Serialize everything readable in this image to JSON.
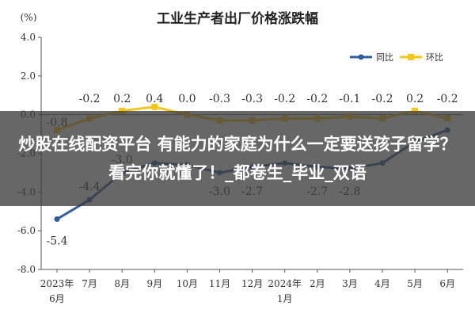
{
  "overlay": {
    "text": "炒股在线配资平台 有能力的家庭为什么一定要送孩子留学？看完你就懂了！_都卷生_毕业_双语"
  },
  "chart_data": {
    "type": "line",
    "title": "工业生产者出厂价格涨跌幅",
    "unit": "(%)",
    "categories": [
      [
        "2023年",
        "6月"
      ],
      [
        "7月"
      ],
      [
        "8月"
      ],
      [
        "9月"
      ],
      [
        "10月"
      ],
      [
        "11月"
      ],
      [
        "12月"
      ],
      [
        "2024年",
        "1月"
      ],
      [
        "2月"
      ],
      [
        "3月"
      ],
      [
        "4月"
      ],
      [
        "5月"
      ],
      [
        "6月"
      ]
    ],
    "ylim": [
      -8.0,
      4.0
    ],
    "yticks": [
      "4.0",
      "2.0",
      "0.0",
      "-2.0",
      "-4.0",
      "-6.0",
      "-8.0"
    ],
    "grid": false,
    "legend_position": "top-right",
    "series": [
      {
        "name": "同比",
        "color": "#2e5d9f",
        "values": [
          -5.4,
          -4.4,
          -3.0,
          -2.5,
          -2.6,
          -3.0,
          -2.7,
          -2.5,
          -2.7,
          -2.8,
          -2.5,
          -1.4,
          -0.8
        ],
        "labels": [
          "-5.4",
          "-4.4",
          "-3.0",
          "",
          "",
          "-3.0",
          "-2.7",
          "",
          "-2.7",
          "-2.8",
          "",
          "",
          ""
        ]
      },
      {
        "name": "环比",
        "color": "#f5c518",
        "values": [
          -0.8,
          -0.2,
          0.2,
          0.4,
          0.0,
          -0.3,
          -0.3,
          -0.2,
          -0.2,
          -0.1,
          -0.2,
          0.2,
          -0.2
        ],
        "labels": [
          "-0.8",
          "-0.2",
          "0.2",
          "0.4",
          "0.0",
          "-0.3",
          "-0.3",
          "-0.2",
          "-0.2",
          "-0.1",
          "-0.2",
          "0.2",
          "-0.2"
        ]
      }
    ]
  }
}
